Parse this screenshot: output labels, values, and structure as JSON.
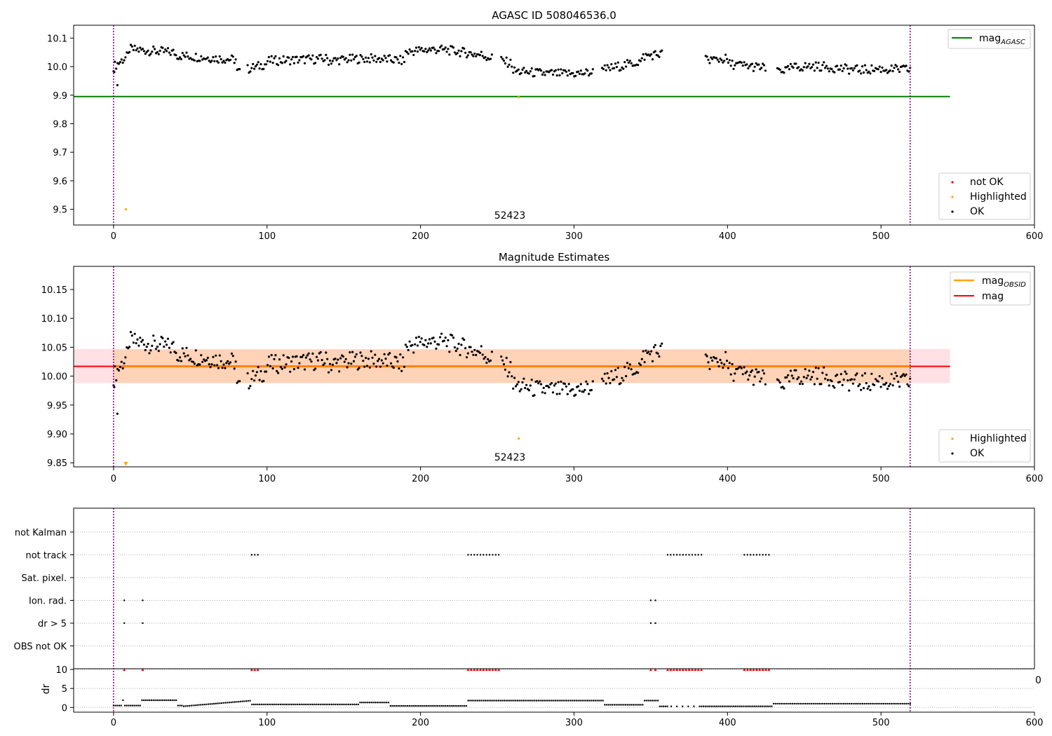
{
  "chart_data": [
    {
      "type": "scatter",
      "title": "AGASC ID 508046536.0",
      "xlim": [
        -26,
        600
      ],
      "ylim": [
        9.445,
        10.145
      ],
      "xticks": [
        0,
        100,
        200,
        300,
        400,
        500,
        600
      ],
      "yticks": [
        9.5,
        9.6,
        9.7,
        9.8,
        9.9,
        10.0,
        10.1
      ],
      "ytick_labels": [
        "9.5",
        "9.6",
        "9.7",
        "9.8",
        "9.9",
        "10.0",
        "10.1"
      ],
      "hlines": [
        {
          "name": "mag_AGASC",
          "y": 9.895,
          "x": [
            -26,
            545
          ],
          "color": "#008000"
        }
      ],
      "vlines": [
        0,
        519
      ],
      "highlighted": [
        {
          "x": 8,
          "y": 9.5
        },
        {
          "x": 264,
          "y": 9.893
        }
      ],
      "annotation": {
        "text": "52423",
        "x": 260,
        "y": 9.47
      },
      "legend_line": {
        "label": "mag",
        "sub": "AGASC"
      },
      "legend_points": [
        {
          "label": "not OK",
          "color": "#ff0000"
        },
        {
          "label": "Highlighted",
          "color": "#ffa500"
        },
        {
          "label": "OK",
          "color": "#000000"
        }
      ],
      "legend_position": "upper right / lower right"
    },
    {
      "type": "scatter",
      "title": "Magnitude Estimates",
      "xlim": [
        -26,
        600
      ],
      "ylim": [
        9.843,
        10.19
      ],
      "xticks": [
        0,
        100,
        200,
        300,
        400,
        500,
        600
      ],
      "yticks": [
        9.85,
        9.9,
        9.95,
        10.0,
        10.05,
        10.1,
        10.15
      ],
      "ytick_labels": [
        "9.85",
        "9.90",
        "9.95",
        "10.00",
        "10.05",
        "10.10",
        "10.15"
      ],
      "mag_obsid": 10.016,
      "mag": 10.017,
      "band_obsid": [
        9.988,
        10.046
      ],
      "band_mag": [
        9.988,
        10.047
      ],
      "highlighted": [
        {
          "x": 264,
          "y": 9.892
        }
      ],
      "off_scale_marker": {
        "x": 8,
        "y": 9.848
      },
      "annotation": {
        "text": "52423",
        "x": 260,
        "y": 9.855
      },
      "legend_lines": [
        {
          "label": "mag",
          "sub": "OBSID",
          "color": "#ffa500"
        },
        {
          "label": "mag",
          "sub": "",
          "color": "#ff0000"
        }
      ],
      "legend_points": [
        {
          "label": "Highlighted",
          "color": "#ffa500"
        },
        {
          "label": "OK",
          "color": "#000000"
        }
      ]
    },
    {
      "type": "scatter",
      "xlim": [
        -26,
        600
      ],
      "xticks": [
        0,
        100,
        200,
        300,
        400,
        500,
        600
      ],
      "flag_rows": [
        "not Kalman",
        "not track",
        "Sat. pixel.",
        "Ion. rad.",
        "dr > 5",
        "OBS not OK"
      ],
      "flags": {
        "not track": [
          [
            90,
            95
          ],
          [
            231,
            252
          ],
          [
            361,
            383
          ],
          [
            411,
            427
          ]
        ],
        "Ion. rad.": [
          7,
          19,
          350,
          353
        ],
        "dr > 5": [
          7,
          19,
          350,
          353
        ]
      },
      "dr": {
        "ylabel": "dr",
        "ylim": [
          -0.5,
          10.2
        ],
        "yticks": [
          0,
          5,
          10
        ],
        "ytick_labels": [
          "0",
          "5",
          "10"
        ],
        "right_label": "0"
      }
    }
  ]
}
